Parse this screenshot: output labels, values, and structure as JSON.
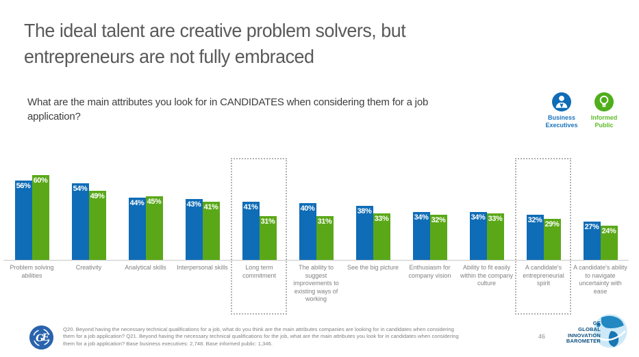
{
  "slide": {
    "title_line1": "The ideal talent are creative problem solvers, but",
    "title_line2": "entrepreneurs are not fully embraced",
    "question_line1": "What are the main attributes you look for in CANDIDATES when considering them for a job",
    "question_line2": "application?",
    "page_number": "46",
    "footnote": "Q20. Beyond having the necessary technical qualifications for a job, what do you think are the main attributes companies are looking for in candidates when considering them for a job application? Q21. Beyond having the necessary technical qualifications for the job, what are the main attributes you look for in candidates when considering them for a job application? Base business executives: 2,748. Base informed public: 1,346.",
    "brand": {
      "ge_monogram": "GE",
      "barometer_lines": [
        "GE",
        "GLOBAL",
        "INNOVATION",
        "BAROMETER"
      ]
    }
  },
  "legend": [
    {
      "label": "Business Executives",
      "color": "#0f6cb6",
      "icon": "business-executive-icon"
    },
    {
      "label": "Informed Public",
      "color": "#4fae1c",
      "icon": "lightbulb-icon"
    }
  ],
  "chart_data": {
    "type": "bar",
    "title": "Main attributes looked for in candidates",
    "categories": [
      "Problem solving abilities",
      "Creativity",
      "Analytical skills",
      "Interpersonal skills",
      "Long term commitment",
      "The ability to suggest improvements to existing ways of working",
      "See the big picture",
      "Enthusiasm for company vision",
      "Ability to fit easily within the company culture",
      "A candidate's entrepreneurial spirit",
      "A candidate's ability to navigate uncertainty with ease"
    ],
    "series": [
      {
        "name": "Business Executives",
        "key": "business-executives",
        "color": "#0f6cb6",
        "values": [
          56,
          54,
          44,
          43,
          41,
          40,
          38,
          34,
          34,
          32,
          27
        ]
      },
      {
        "name": "Informed Public",
        "key": "informed-public",
        "color": "#5aa818",
        "values": [
          60,
          49,
          45,
          41,
          31,
          31,
          33,
          32,
          33,
          29,
          24
        ]
      }
    ],
    "value_suffix": "%",
    "value_labels": "inside-top",
    "highlight_indices": [
      4,
      9
    ],
    "highlighted_categories": [
      "Long term commitment",
      "A candidate's entrepreneurial spirit"
    ],
    "ylim": [
      0,
      75
    ],
    "grid": false,
    "legend_position": "top-right"
  }
}
